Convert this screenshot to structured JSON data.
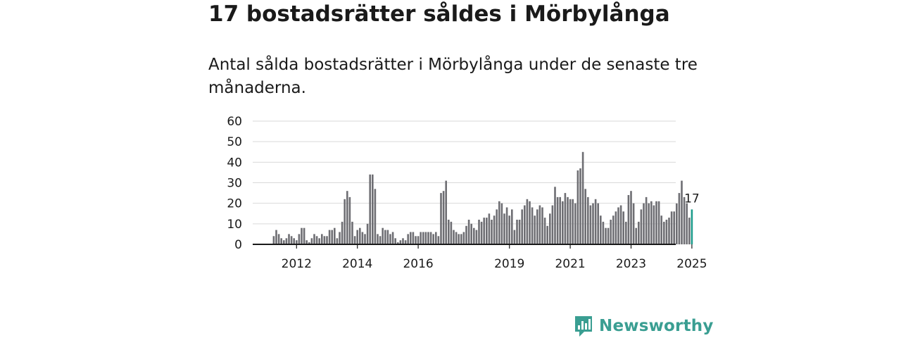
{
  "headline": "17 bostadsrätter såldes i Mörbylånga",
  "subtitle": "Antal sålda bostadsrätter i Mörbylånga under de senaste tre månaderna.",
  "brand": {
    "name": "Newsworthy",
    "color": "#3a9e92"
  },
  "colors": {
    "bar": "#6e6e73",
    "highlight": "#1e9c8c",
    "grid": "#d9d9d9",
    "axis": "#1a1a1a"
  },
  "chart_data": {
    "type": "bar",
    "title": "Antal sålda bostadsrätter i Mörbylånga",
    "xlabel": "",
    "ylabel": "",
    "ylim": [
      0,
      60
    ],
    "y_ticks": [
      0,
      10,
      20,
      30,
      40,
      50,
      60
    ],
    "x_start": "2011-04",
    "x_tick_labels": [
      {
        "label": "2012",
        "index": 9
      },
      {
        "label": "2014",
        "index": 33
      },
      {
        "label": "2016",
        "index": 57
      },
      {
        "label": "2019",
        "index": 93
      },
      {
        "label": "2021",
        "index": 117
      },
      {
        "label": "2023",
        "index": 141
      },
      {
        "label": "2025",
        "index": 165
      }
    ],
    "values": [
      4,
      7,
      5,
      3,
      2,
      3,
      5,
      4,
      3,
      2,
      5,
      8,
      8,
      2,
      1,
      3,
      5,
      4,
      3,
      5,
      4,
      4,
      7,
      7,
      8,
      3,
      6,
      11,
      22,
      26,
      23,
      11,
      4,
      7,
      8,
      6,
      5,
      10,
      34,
      34,
      27,
      5,
      4,
      8,
      7,
      7,
      5,
      6,
      3,
      1,
      2,
      3,
      2,
      5,
      6,
      6,
      4,
      4,
      6,
      6,
      6,
      6,
      6,
      5,
      6,
      4,
      25,
      26,
      31,
      12,
      11,
      7,
      6,
      5,
      5,
      6,
      9,
      12,
      10,
      8,
      7,
      12,
      11,
      13,
      13,
      15,
      12,
      14,
      17,
      21,
      20,
      15,
      18,
      14,
      17,
      7,
      12,
      12,
      17,
      19,
      22,
      21,
      18,
      14,
      17,
      19,
      18,
      13,
      9,
      15,
      19,
      28,
      23,
      23,
      21,
      25,
      23,
      22,
      22,
      20,
      36,
      37,
      45,
      27,
      23,
      19,
      20,
      22,
      20,
      14,
      11,
      8,
      8,
      12,
      14,
      16,
      18,
      19,
      16,
      11,
      24,
      26,
      20,
      8,
      11,
      17,
      20,
      23,
      20,
      21,
      19,
      21,
      21,
      14,
      11,
      12,
      13,
      16,
      16,
      20,
      25,
      31,
      23,
      20,
      13,
      17
    ],
    "last_value_label": "17"
  }
}
